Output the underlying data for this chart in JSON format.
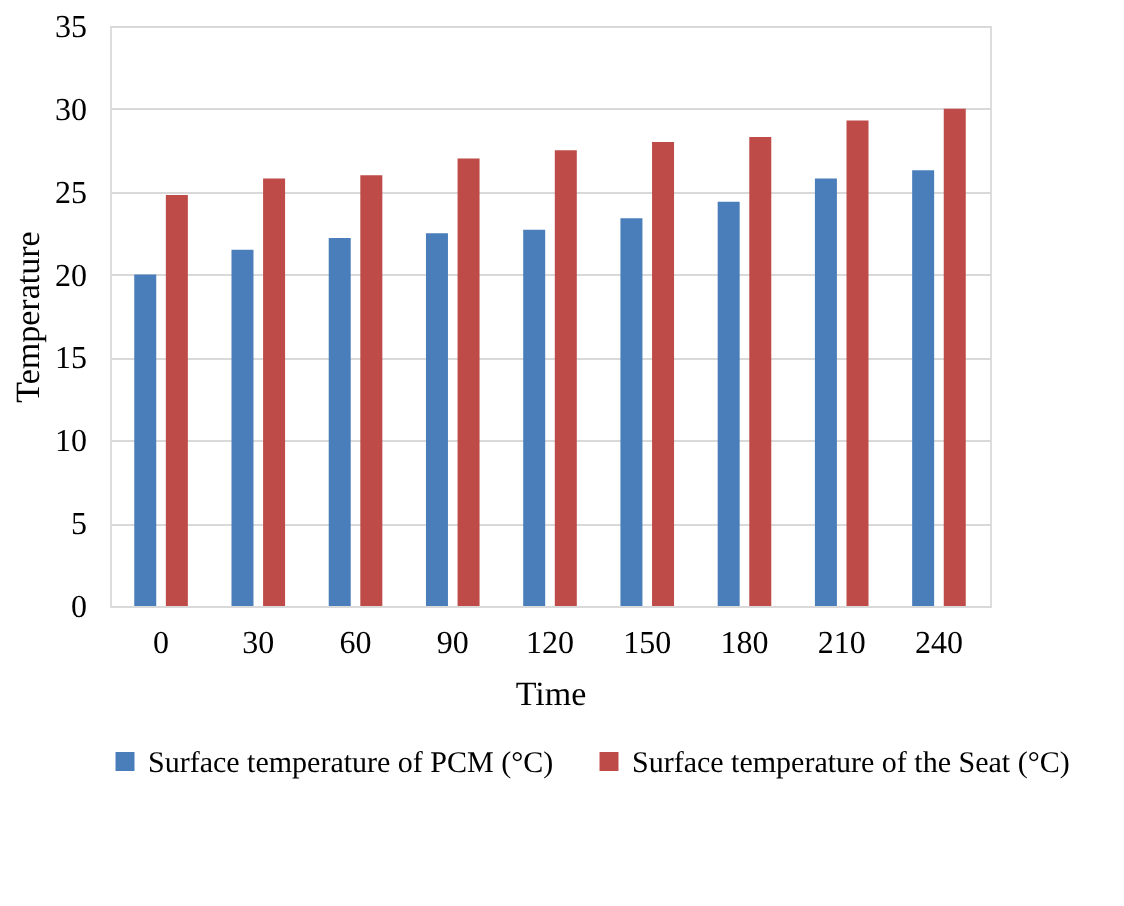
{
  "chart_data": {
    "type": "bar",
    "xlabel": "Time",
    "ylabel": "Temperature",
    "categories": [
      "0",
      "30",
      "60",
      "90",
      "120",
      "150",
      "180",
      "210",
      "240"
    ],
    "series": [
      {
        "name": "Surface temperature of PCM (°C)",
        "color": "#4a7ebb",
        "values": [
          20.0,
          21.5,
          22.2,
          22.5,
          22.7,
          23.4,
          24.4,
          25.8,
          26.3
        ]
      },
      {
        "name": "Surface temperature of the Seat (°C)",
        "color": "#be4b48",
        "values": [
          24.8,
          25.8,
          26.0,
          27.0,
          27.5,
          28.0,
          28.3,
          29.3,
          30.0
        ]
      }
    ],
    "ylim": [
      0,
      35
    ],
    "yticks": [
      0,
      5,
      10,
      15,
      20,
      25,
      30,
      35
    ],
    "grid": "y",
    "legend": "bottom"
  }
}
